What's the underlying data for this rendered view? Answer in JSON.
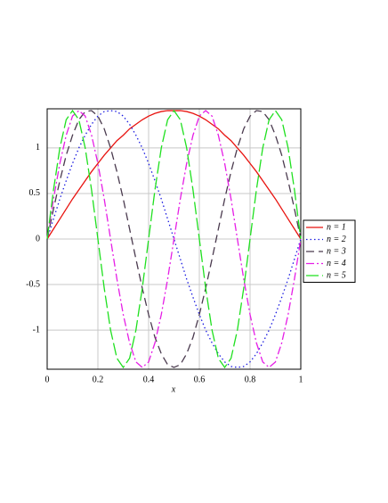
{
  "chart_data": {
    "type": "line",
    "x_label": "x",
    "x": [
      0,
      0.025,
      0.05,
      0.075,
      0.1,
      0.125,
      0.15,
      0.175,
      0.2,
      0.225,
      0.25,
      0.275,
      0.3,
      0.325,
      0.35,
      0.375,
      0.4,
      0.425,
      0.45,
      0.475,
      0.5,
      0.525,
      0.55,
      0.575,
      0.6,
      0.625,
      0.65,
      0.675,
      0.7,
      0.725,
      0.75,
      0.775,
      0.8,
      0.825,
      0.85,
      0.875,
      0.9,
      0.925,
      0.95,
      0.975,
      1
    ],
    "series": [
      {
        "name": "n = 1",
        "color": "#e8130f",
        "dash": "solid",
        "values": [
          0,
          0.11,
          0.22,
          0.33,
          0.44,
          0.54,
          0.64,
          0.74,
          0.83,
          0.92,
          1,
          1.08,
          1.14,
          1.21,
          1.26,
          1.31,
          1.35,
          1.38,
          1.4,
          1.41,
          1.41,
          1.41,
          1.4,
          1.38,
          1.35,
          1.31,
          1.26,
          1.21,
          1.14,
          1.08,
          1,
          0.92,
          0.83,
          0.74,
          0.64,
          0.54,
          0.44,
          0.33,
          0.22,
          0.11,
          0
        ]
      },
      {
        "name": "n = 2",
        "color": "#1a1ae0",
        "dash": "dotted",
        "values": [
          0,
          0.22,
          0.44,
          0.64,
          0.83,
          1,
          1.14,
          1.26,
          1.35,
          1.4,
          1.41,
          1.4,
          1.35,
          1.26,
          1.14,
          1,
          0.83,
          0.64,
          0.44,
          0.22,
          0,
          -0.22,
          -0.44,
          -0.64,
          -0.83,
          -1,
          -1.14,
          -1.26,
          -1.35,
          -1.4,
          -1.41,
          -1.4,
          -1.35,
          -1.26,
          -1.14,
          -1,
          -0.83,
          -0.64,
          -0.44,
          -0.22,
          0
        ]
      },
      {
        "name": "n = 3",
        "color": "#4a3a4e",
        "dash": "dashed",
        "values": [
          0,
          0.33,
          0.64,
          0.92,
          1.14,
          1.31,
          1.4,
          1.41,
          1.35,
          1.21,
          1,
          0.74,
          0.44,
          0.11,
          -0.22,
          -0.54,
          -0.83,
          -1.08,
          -1.26,
          -1.38,
          -1.41,
          -1.38,
          -1.26,
          -1.08,
          -0.83,
          -0.54,
          -0.22,
          0.11,
          0.44,
          0.74,
          1,
          1.21,
          1.35,
          1.41,
          1.4,
          1.31,
          1.14,
          0.92,
          0.64,
          0.33,
          0
        ]
      },
      {
        "name": "n = 4",
        "color": "#e61ee6",
        "dash": "dashdot",
        "values": [
          0,
          0.44,
          0.83,
          1.14,
          1.35,
          1.41,
          1.35,
          1.14,
          0.83,
          0.44,
          0,
          -0.44,
          -0.83,
          -1.14,
          -1.35,
          -1.41,
          -1.35,
          -1.14,
          -0.83,
          -0.44,
          0,
          0.44,
          0.83,
          1.14,
          1.35,
          1.41,
          1.35,
          1.14,
          0.83,
          0.44,
          0,
          -0.44,
          -0.83,
          -1.14,
          -1.35,
          -1.41,
          -1.35,
          -1.14,
          -0.83,
          -0.44,
          0
        ]
      },
      {
        "name": "n = 5",
        "color": "#1fe01f",
        "dash": "longdash",
        "values": [
          0,
          0.54,
          1,
          1.31,
          1.41,
          1.31,
          1,
          0.54,
          0,
          -0.54,
          -1,
          -1.31,
          -1.41,
          -1.31,
          -1,
          -0.54,
          0,
          0.54,
          1,
          1.31,
          1.41,
          1.31,
          1,
          0.54,
          0,
          -0.54,
          -1,
          -1.31,
          -1.41,
          -1.31,
          -1,
          -0.54,
          0,
          0.54,
          1,
          1.31,
          1.41,
          1.31,
          1,
          0.54,
          0
        ]
      }
    ],
    "xlim": [
      0,
      1
    ],
    "xticks": [
      0,
      0.2,
      0.4,
      0.6,
      0.8,
      1
    ],
    "ylim": [
      -1.43,
      1.43
    ],
    "yticks": [
      -1,
      -0.5,
      0,
      0.5,
      1
    ],
    "grid": true,
    "legend": "right"
  }
}
